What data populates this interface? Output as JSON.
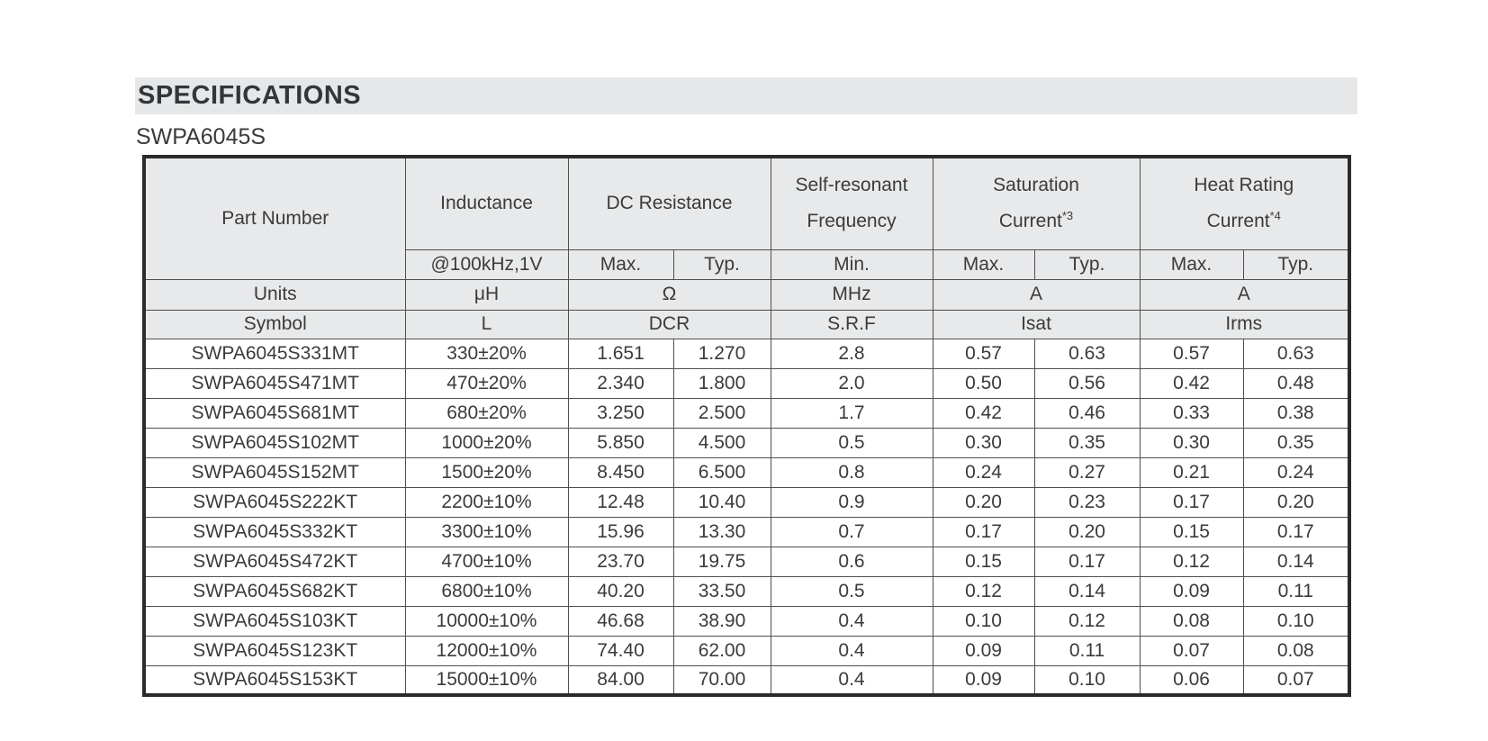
{
  "page": {
    "title": "SPECIFICATIONS",
    "subtitle": "SWPA6045S"
  },
  "table": {
    "header": {
      "part_number": "Part Number",
      "inductance": "Inductance",
      "dc_resistance": "DC Resistance",
      "self_resonant": {
        "line1": "Self-resonant",
        "line2": "Frequency"
      },
      "saturation": {
        "line1": "Saturation",
        "line2": "Current",
        "sup": "*3"
      },
      "heat_rating": {
        "line1": "Heat Rating",
        "line2": "Current",
        "sup": "*4"
      },
      "inductance_condition": "@100kHz,1V",
      "sub": {
        "dcr_max": "Max.",
        "dcr_typ": "Typ.",
        "srf_min": "Min.",
        "isat_max": "Max.",
        "isat_typ": "Typ.",
        "irms_max": "Max.",
        "irms_typ": "Typ."
      }
    },
    "units_row": {
      "label": "Units",
      "inductance": "μH",
      "dcr": "Ω",
      "srf": "MHz",
      "isat": "A",
      "irms": "A"
    },
    "symbol_row": {
      "label": "Symbol",
      "inductance": "L",
      "dcr": "DCR",
      "srf": "S.R.F",
      "isat": "Isat",
      "irms": "Irms"
    },
    "columns": [
      "Part Number",
      "Inductance",
      "DCR Max",
      "DCR Typ",
      "SRF Min",
      "Isat Max",
      "Isat Typ",
      "Irms Max",
      "Irms Typ"
    ],
    "rows": [
      [
        "SWPA6045S331MT",
        "330±20%",
        "1.651",
        "1.270",
        "2.8",
        "0.57",
        "0.63",
        "0.57",
        "0.63"
      ],
      [
        "SWPA6045S471MT",
        "470±20%",
        "2.340",
        "1.800",
        "2.0",
        "0.50",
        "0.56",
        "0.42",
        "0.48"
      ],
      [
        "SWPA6045S681MT",
        "680±20%",
        "3.250",
        "2.500",
        "1.7",
        "0.42",
        "0.46",
        "0.33",
        "0.38"
      ],
      [
        "SWPA6045S102MT",
        "1000±20%",
        "5.850",
        "4.500",
        "0.5",
        "0.30",
        "0.35",
        "0.30",
        "0.35"
      ],
      [
        "SWPA6045S152MT",
        "1500±20%",
        "8.450",
        "6.500",
        "0.8",
        "0.24",
        "0.27",
        "0.21",
        "0.24"
      ],
      [
        "SWPA6045S222KT",
        "2200±10%",
        "12.48",
        "10.40",
        "0.9",
        "0.20",
        "0.23",
        "0.17",
        "0.20"
      ],
      [
        "SWPA6045S332KT",
        "3300±10%",
        "15.96",
        "13.30",
        "0.7",
        "0.17",
        "0.20",
        "0.15",
        "0.17"
      ],
      [
        "SWPA6045S472KT",
        "4700±10%",
        "23.70",
        "19.75",
        "0.6",
        "0.15",
        "0.17",
        "0.12",
        "0.14"
      ],
      [
        "SWPA6045S682KT",
        "6800±10%",
        "40.20",
        "33.50",
        "0.5",
        "0.12",
        "0.14",
        "0.09",
        "0.11"
      ],
      [
        "SWPA6045S103KT",
        "10000±10%",
        "46.68",
        "38.90",
        "0.4",
        "0.10",
        "0.12",
        "0.08",
        "0.10"
      ],
      [
        "SWPA6045S123KT",
        "12000±10%",
        "74.40",
        "62.00",
        "0.4",
        "0.09",
        "0.11",
        "0.07",
        "0.08"
      ],
      [
        "SWPA6045S153KT",
        "15000±10%",
        "84.00",
        "70.00",
        "0.4",
        "0.09",
        "0.10",
        "0.06",
        "0.07"
      ]
    ]
  }
}
